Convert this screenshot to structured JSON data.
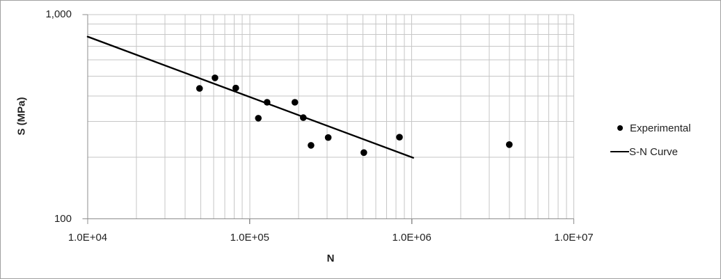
{
  "chart_data": {
    "type": "scatter",
    "title": "",
    "xlabel": "N",
    "ylabel": "S (MPa)",
    "x_scale": "log",
    "y_scale": "log",
    "xlim": [
      10000,
      10000000
    ],
    "ylim": [
      100,
      1000
    ],
    "grid": true,
    "legend_position": "right-outside",
    "x_ticks": [
      {
        "value": 10000,
        "label": "1.0E+04"
      },
      {
        "value": 100000,
        "label": "1.0E+05"
      },
      {
        "value": 1000000,
        "label": "1.0E+06"
      },
      {
        "value": 10000000,
        "label": "1.0E+07"
      }
    ],
    "y_ticks": [
      {
        "value": 1000,
        "label": "1,000"
      },
      {
        "value": 100,
        "label": "100"
      }
    ],
    "series": [
      {
        "name": "Experimental",
        "type": "scatter",
        "marker": "filled-circle",
        "color": "#000000",
        "points": [
          {
            "N": 49000,
            "S": 435
          },
          {
            "N": 61000,
            "S": 490
          },
          {
            "N": 82000,
            "S": 437
          },
          {
            "N": 113000,
            "S": 311
          },
          {
            "N": 128000,
            "S": 372
          },
          {
            "N": 190000,
            "S": 372
          },
          {
            "N": 214000,
            "S": 313
          },
          {
            "N": 239000,
            "S": 229
          },
          {
            "N": 305000,
            "S": 250
          },
          {
            "N": 506000,
            "S": 211
          },
          {
            "N": 840000,
            "S": 251
          },
          {
            "N": 4000000,
            "S": 231
          }
        ]
      },
      {
        "name": "S-N Curve",
        "type": "line",
        "color": "#000000",
        "points": [
          {
            "N": 10000,
            "S": 780
          },
          {
            "N": 1020000,
            "S": 199
          }
        ]
      }
    ]
  },
  "colors": {
    "background": "#ffffff",
    "chart_border": "#9f9f9f",
    "gridline": "#c6c6c6",
    "axis_line": "#8c8c8c",
    "text": "#1f1f1f",
    "series": "#000000"
  }
}
